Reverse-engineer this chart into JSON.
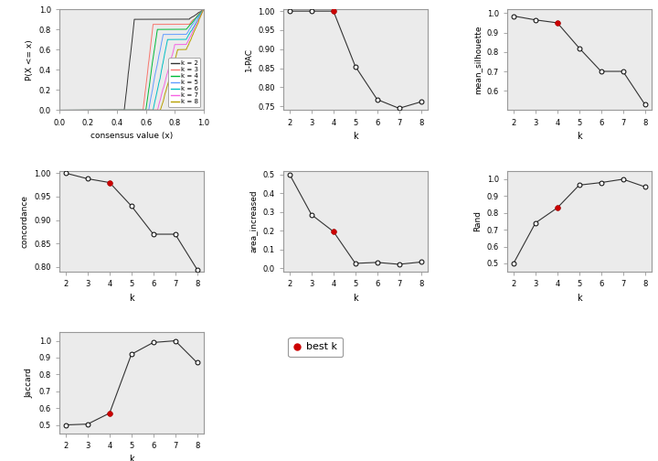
{
  "k_values": [
    2,
    3,
    4,
    5,
    6,
    7,
    8
  ],
  "best_k": 4,
  "pac_1": [
    1.0,
    1.0,
    1.0,
    0.855,
    0.768,
    0.745,
    0.762
  ],
  "mean_silhouette": [
    0.985,
    0.965,
    0.95,
    0.82,
    0.7,
    0.7,
    0.53
  ],
  "concordance": [
    1.0,
    0.988,
    0.98,
    0.93,
    0.87,
    0.87,
    0.795
  ],
  "area_increased": [
    0.5,
    0.285,
    0.195,
    0.025,
    0.03,
    0.02,
    0.032
  ],
  "rand": [
    0.5,
    0.74,
    0.83,
    0.965,
    0.98,
    1.0,
    0.955
  ],
  "jaccard": [
    0.5,
    0.505,
    0.57,
    0.92,
    0.99,
    1.0,
    0.87
  ],
  "line_colors": {
    "k2": "#333333",
    "k3": "#F8766D",
    "k4": "#00BA38",
    "k5": "#619CFF",
    "k6": "#00BFC4",
    "k7": "#F564E3",
    "k8": "#B79F00"
  },
  "bg_color": "#FFFFFF",
  "plot_bg": "#EBEBEB",
  "best_k_color": "#CC0000",
  "line_color": "#333333",
  "spine_color": "#AAAAAA",
  "grid_color": "#FFFFFF"
}
